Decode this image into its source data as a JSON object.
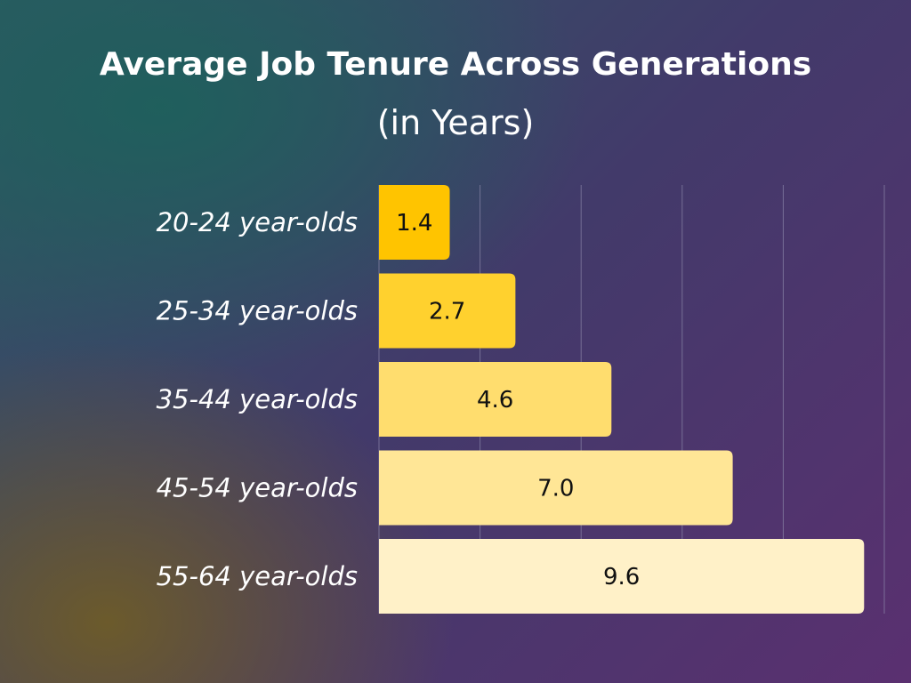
{
  "chart_data": {
    "type": "bar",
    "orientation": "horizontal",
    "title": "Average Job Tenure Across Generations",
    "subtitle": "(in Years)",
    "categories": [
      "20-24 year-olds",
      "25-34 year-olds",
      "35-44 year-olds",
      "45-54 year-olds",
      "55-64 year-olds"
    ],
    "values": [
      1.4,
      2.7,
      4.6,
      7.0,
      9.6
    ],
    "value_labels": [
      "1.4",
      "2.7",
      "4.6",
      "7.0",
      "9.6"
    ],
    "xlim": [
      0,
      10
    ],
    "grid_ticks": [
      0,
      2,
      4,
      6,
      8,
      10
    ],
    "grid": true,
    "xlabel": "",
    "ylabel": "",
    "bar_colors": [
      "#FFC400",
      "#FFD12E",
      "#FFDD6E",
      "#FFE696",
      "#FFF1C8"
    ],
    "grid_color": "#8a86a8"
  }
}
